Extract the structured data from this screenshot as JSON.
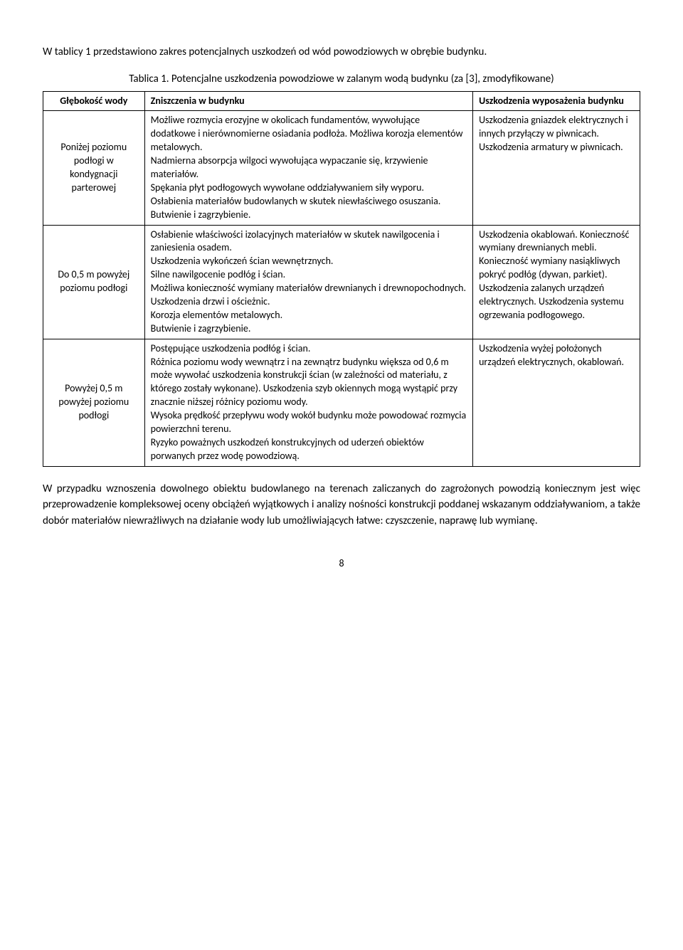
{
  "intro": "W tablicy 1 przedstawiono zakres potencjalnych uszkodzeń od wód powodziowych w obrębie budynku.",
  "caption": "Tablica 1. Potencjalne uszkodzenia powodziowe w zalanym wodą budynku (za [3], zmodyfikowane)",
  "table": {
    "headers": {
      "c1": "Głębokość wody",
      "c2": "Zniszczenia w budynku",
      "c3": "Uszkodzenia wyposażenia budynku"
    },
    "rows": [
      {
        "c1": "Poniżej poziomu podłogi w kondygnacji parterowej",
        "c2": "Możliwe rozmycia erozyjne w okolicach fundamentów, wywołujące dodatkowe i nierównomierne osiadania podłoża. Możliwa korozja elementów metalowych.\nNadmierna absorpcja wilgoci wywołująca wypaczanie się, krzywienie materiałów.\nSpękania płyt podłogowych wywołane oddziaływaniem siły wyporu.\nOsłabienia materiałów budowlanych w skutek niewłaściwego osuszania.\nButwienie i zagrzybienie.",
        "c3": "Uszkodzenia gniazdek elektrycznych i innych przyłączy w piwnicach. Uszkodzenia armatury w piwnicach."
      },
      {
        "c1": "Do 0,5 m powyżej poziomu podłogi",
        "c2": "Osłabienie właściwości izolacyjnych materiałów w skutek nawilgocenia i zaniesienia osadem.\nUszkodzenia wykończeń ścian wewnętrznych.\nSilne nawilgocenie podłóg i ścian.\nMożliwa konieczność wymiany materiałów drewnianych i drewnopochodnych.\nUszkodzenia drzwi i ościeżnic.\nKorozja elementów metalowych.\nButwienie i zagrzybienie.",
        "c3": "Uszkodzenia okablowań. Konieczność wymiany drewnianych mebli. Konieczność wymiany nasiąkliwych pokryć podłóg (dywan, parkiet). Uszkodzenia zalanych urządzeń elektrycznych. Uszkodzenia systemu ogrzewania podłogowego."
      },
      {
        "c1": "Powyżej 0,5 m powyżej poziomu podłogi",
        "c2": "Postępujące uszkodzenia podłóg i ścian.\nRóżnica poziomu wody wewnątrz i na zewnątrz budynku większa od 0,6 m może wywołać uszkodzenia konstrukcji ścian (w zależności od materiału, z którego zostały wykonane). Uszkodzenia szyb okiennych mogą wystąpić przy znacznie niższej różnicy poziomu wody.\nWysoka prędkość przepływu wody wokół budynku może powodować rozmycia powierzchni terenu.\nRyzyko poważnych uszkodzeń konstrukcyjnych od uderzeń obiektów porwanych przez wodę powodziową.",
        "c3": "Uszkodzenia wyżej położonych urządzeń elektrycznych, okablowań."
      }
    ]
  },
  "outro": "W przypadku wznoszenia dowolnego obiektu budowlanego na terenach zaliczanych do zagrożonych powodzią koniecznym jest więc przeprowadzenie kompleksowej oceny obciążeń wyjątkowych i analizy nośności konstrukcji poddanej wskazanym oddziaływaniom, a także dobór materiałów niewrażliwych na działanie wody lub umożliwiających łatwe: czyszczenie, naprawę lub wymianę.",
  "pageNumber": "8"
}
